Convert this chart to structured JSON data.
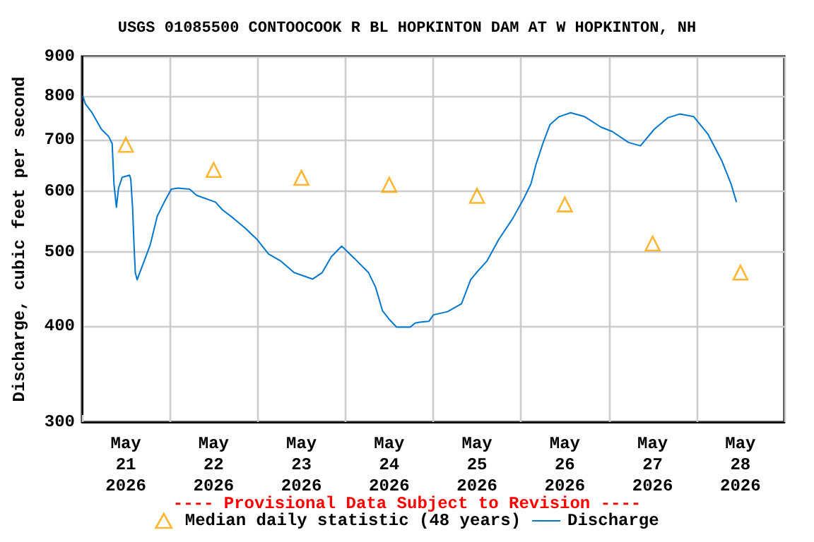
{
  "chart_data": {
    "type": "line",
    "title": "USGS 01085500 CONTOOCOOK R BL HOPKINTON DAM AT W HOPKINTON, NH",
    "ylabel": "Discharge, cubic feet per second",
    "annotations": [
      "---- Provisional Data Subject to Revision ----"
    ],
    "xlim": [
      "2026-05-21T00:00",
      "2026-05-29T00:00"
    ],
    "xticks": [
      {
        "value": "2026-05-21T00:00",
        "label": null
      },
      {
        "value": "2026-05-21T12:00",
        "label": "May\n21\n2026"
      },
      {
        "value": "2026-05-22T00:00",
        "label": null
      },
      {
        "value": "2026-05-22T12:00",
        "label": "May\n22\n2026"
      },
      {
        "value": "2026-05-23T00:00",
        "label": null
      },
      {
        "value": "2026-05-23T12:00",
        "label": "May\n23\n2026"
      },
      {
        "value": "2026-05-24T00:00",
        "label": null
      },
      {
        "value": "2026-05-24T12:00",
        "label": "May\n24\n2026"
      },
      {
        "value": "2026-05-25T00:00",
        "label": null
      },
      {
        "value": "2026-05-25T12:00",
        "label": "May\n25\n2026"
      },
      {
        "value": "2026-05-26T00:00",
        "label": null
      },
      {
        "value": "2026-05-26T12:00",
        "label": "May\n26\n2026"
      },
      {
        "value": "2026-05-27T00:00",
        "label": null
      },
      {
        "value": "2026-05-27T12:00",
        "label": "May\n27\n2026"
      },
      {
        "value": "2026-05-28T00:00",
        "label": null
      },
      {
        "value": "2026-05-28T12:00",
        "label": "May\n28\n2026"
      },
      {
        "value": "2026-05-29T00:00",
        "label": null
      }
    ],
    "ylim": [
      300,
      900
    ],
    "yticks": [
      300,
      400,
      500,
      600,
      700,
      800,
      900
    ],
    "log": true,
    "grid": true,
    "legend": "bottom",
    "series": [
      {
        "name": "Median daily statistic (48 years)",
        "type": "scatter",
        "marker": "triangle",
        "color": "#ffa500",
        "x": [
          "2026-05-21T12:00",
          "2026-05-22T12:00",
          "2026-05-23T12:00",
          "2026-05-24T12:00",
          "2026-05-25T12:00",
          "2026-05-26T12:00",
          "2026-05-27T12:00",
          "2026-05-28T12:00"
        ],
        "values": [
          690,
          640,
          625,
          612,
          592,
          577,
          513,
          470
        ]
      },
      {
        "name": "Discharge",
        "marker": "none",
        "color": "#0077cc",
        "x": [
          "2026-05-21T00:15",
          "2026-05-21T00:53",
          "2026-05-21T02:45",
          "2026-05-21T05:20",
          "2026-05-21T07:15",
          "2026-05-21T08:15",
          "2026-05-21T08:45",
          "2026-05-21T09:25",
          "2026-05-21T10:00",
          "2026-05-21T11:00",
          "2026-05-21T13:00",
          "2026-05-21T13:20",
          "2026-05-21T13:50",
          "2026-05-21T14:15",
          "2026-05-21T14:35",
          "2026-05-21T15:05",
          "2026-05-21T16:45",
          "2026-05-21T18:40",
          "2026-05-21T20:35",
          "2026-05-21T22:30",
          "2026-05-22T00:25",
          "2026-05-22T02:15",
          "2026-05-22T05:25",
          "2026-05-22T07:20",
          "2026-05-22T12:30",
          "2026-05-22T14:20",
          "2026-05-22T17:30",
          "2026-05-22T20:40",
          "2026-05-22T23:55",
          "2026-05-23T03:00",
          "2026-05-23T06:15",
          "2026-05-23T10:00",
          "2026-05-23T15:05",
          "2026-05-23T17:40",
          "2026-05-23T20:10",
          "2026-05-23T23:00",
          "2026-05-24T02:35",
          "2026-05-24T06:20",
          "2026-05-24T08:15",
          "2026-05-24T10:10",
          "2026-05-24T12:05",
          "2026-05-24T14:00",
          "2026-05-24T17:45",
          "2026-05-24T19:05",
          "2026-05-24T20:20",
          "2026-05-24T22:50",
          "2026-05-25T00:05",
          "2026-05-25T03:55",
          "2026-05-25T07:45",
          "2026-05-25T10:15",
          "2026-05-25T12:10",
          "2026-05-25T14:45",
          "2026-05-25T17:55",
          "2026-05-25T21:45",
          "2026-05-26T00:55",
          "2026-05-26T02:45",
          "2026-05-26T04:05",
          "2026-05-26T06:00",
          "2026-05-26T07:55",
          "2026-05-26T10:25",
          "2026-05-26T13:35",
          "2026-05-26T17:25",
          "2026-05-26T21:50",
          "2026-05-27T01:00",
          "2026-05-27T05:25",
          "2026-05-27T08:40",
          "2026-05-27T12:25",
          "2026-05-27T16:15",
          "2026-05-27T19:25",
          "2026-05-27T23:15",
          "2026-05-28T03:05",
          "2026-05-28T06:50",
          "2026-05-28T09:25",
          "2026-05-28T10:55"
        ],
        "values": [
          800,
          781,
          760,
          723,
          708,
          693,
          614,
          572,
          606,
          626,
          630,
          623,
          572,
          508,
          470,
          460,
          483,
          511,
          557,
          581,
          604,
          606,
          604,
          593,
          581,
          568,
          553,
          537,
          519,
          497,
          487,
          470,
          461,
          470,
          493,
          509,
          490,
          470,
          450,
          419,
          408,
          399,
          399,
          404,
          405,
          406,
          414,
          418,
          428,
          460,
          472,
          487,
          519,
          553,
          589,
          614,
          650,
          693,
          733,
          751,
          760,
          751,
          728,
          718,
          695,
          688,
          723,
          749,
          757,
          751,
          713,
          659,
          614,
          581
        ]
      }
    ]
  }
}
